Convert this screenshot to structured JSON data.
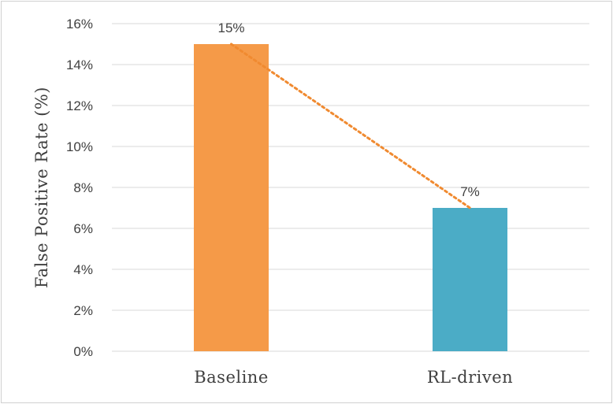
{
  "chart_data": {
    "type": "bar",
    "categories": [
      "Baseline",
      "RL-driven"
    ],
    "values": [
      15,
      7
    ],
    "data_labels": [
      "15%",
      "7%"
    ],
    "ylabel": "False Positive Rate (%)",
    "ylim": [
      0,
      16
    ],
    "y_tick_step": 2,
    "y_tick_suffix": "%",
    "grid": true,
    "legend": "none",
    "trend_line": "dotted, connecting bar tops",
    "colors": {
      "bars": [
        "#F59A48",
        "#4BACC6"
      ],
      "trend_line": "#F08A30",
      "grid": "#d9d9d9",
      "text": "#404040"
    }
  }
}
